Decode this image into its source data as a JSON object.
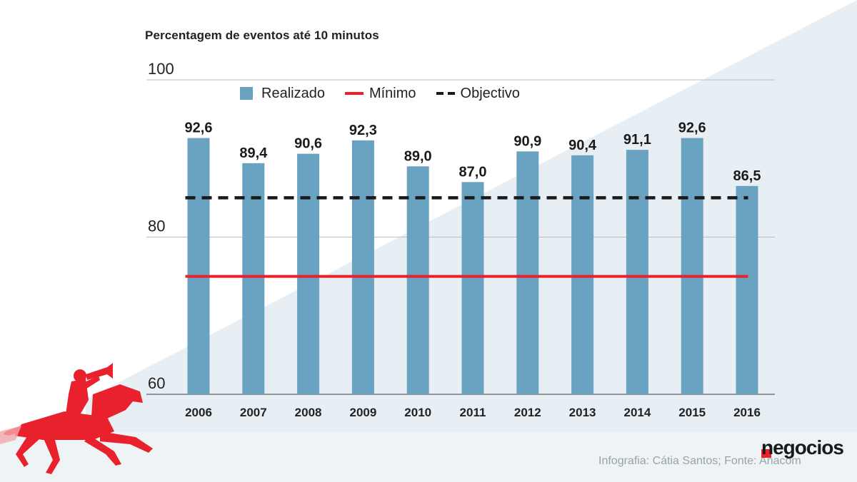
{
  "chart_data": {
    "type": "bar",
    "subtitle": "Percentagem de eventos até 10 minutos",
    "categories": [
      "2006",
      "2007",
      "2008",
      "2009",
      "2010",
      "2011",
      "2012",
      "2013",
      "2014",
      "2015",
      "2016"
    ],
    "series": [
      {
        "name": "Realizado",
        "type": "bar",
        "values": [
          92.6,
          89.4,
          90.6,
          92.3,
          89.0,
          87.0,
          90.9,
          90.4,
          91.1,
          92.6,
          86.5
        ],
        "labels": [
          "92,6",
          "89,4",
          "90,6",
          "92,3",
          "89,0",
          "87,0",
          "90,9",
          "90,4",
          "91,1",
          "92,6",
          "86,5"
        ],
        "color": "#6aa2c2"
      },
      {
        "name": "Mínimo",
        "type": "line",
        "value": 75,
        "color": "#e8212d"
      },
      {
        "name": "Objectivo",
        "type": "dashed-line",
        "value": 85,
        "color": "#1a1a1a"
      }
    ],
    "yticks": [
      60,
      80,
      100
    ],
    "ylim": [
      60,
      100
    ],
    "legend_position": "top"
  },
  "footer": {
    "credit": "Infografia: Cátia Santos; Fonte: Anacom",
    "brand": "negocios"
  },
  "colors": {
    "bar": "#6aa2c2",
    "minimum": "#e8212d",
    "objective": "#1a1a1a",
    "background_wedge": "#e6eef3"
  }
}
